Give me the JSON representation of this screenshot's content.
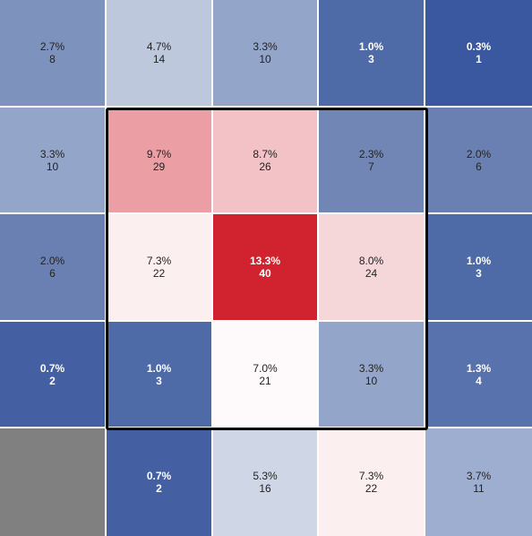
{
  "chart_data": {
    "type": "heatmap",
    "title": "",
    "rows": 5,
    "cols": 5,
    "cells": [
      [
        {
          "pct": "2.7%",
          "count": "8",
          "color": "#7d92bd"
        },
        {
          "pct": "4.7%",
          "count": "14",
          "color": "#bdc8dc"
        },
        {
          "pct": "3.3%",
          "count": "10",
          "color": "#93a5c8"
        },
        {
          "pct": "1.0%",
          "count": "3",
          "color": "#4e6aa7"
        },
        {
          "pct": "0.3%",
          "count": "1",
          "color": "#3a58a0"
        }
      ],
      [
        {
          "pct": "3.3%",
          "count": "10",
          "color": "#93a5c8"
        },
        {
          "pct": "9.7%",
          "count": "29",
          "color": "#eb9fa4"
        },
        {
          "pct": "8.7%",
          "count": "26",
          "color": "#f3c2c6"
        },
        {
          "pct": "2.3%",
          "count": "7",
          "color": "#7286b5"
        },
        {
          "pct": "2.0%",
          "count": "6",
          "color": "#6a80b3"
        }
      ],
      [
        {
          "pct": "2.0%",
          "count": "6",
          "color": "#6a80b3"
        },
        {
          "pct": "7.3%",
          "count": "22",
          "color": "#fbefef"
        },
        {
          "pct": "13.3%",
          "count": "40",
          "color": "#d1232f"
        },
        {
          "pct": "8.0%",
          "count": "24",
          "color": "#f6d7d9"
        },
        {
          "pct": "1.0%",
          "count": "3",
          "color": "#4e6aa7"
        }
      ],
      [
        {
          "pct": "0.7%",
          "count": "2",
          "color": "#4460a3"
        },
        {
          "pct": "1.0%",
          "count": "3",
          "color": "#4e6aa7"
        },
        {
          "pct": "7.0%",
          "count": "21",
          "color": "#fef9fa"
        },
        {
          "pct": "3.3%",
          "count": "10",
          "color": "#93a5c8"
        },
        {
          "pct": "1.3%",
          "count": "4",
          "color": "#5872ad"
        }
      ],
      [
        {
          "pct": "",
          "count": "",
          "color": "#808080"
        },
        {
          "pct": "0.7%",
          "count": "2",
          "color": "#4460a3"
        },
        {
          "pct": "5.3%",
          "count": "16",
          "color": "#cfd7e6"
        },
        {
          "pct": "7.3%",
          "count": "22",
          "color": "#fbefef"
        },
        {
          "pct": "3.7%",
          "count": "11",
          "color": "#9eaed0"
        }
      ]
    ],
    "highlight": {
      "row_start": 1,
      "row_end": 3,
      "col_start": 1,
      "col_end": 3,
      "color": "#000000"
    }
  }
}
